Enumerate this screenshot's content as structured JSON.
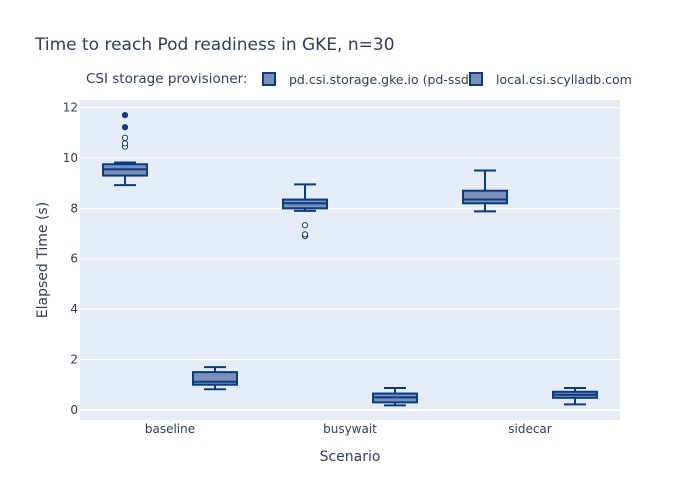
{
  "chart_data": {
    "type": "box",
    "title": "Time to reach Pod readiness in GKE, n=30",
    "xlabel": "Scenario",
    "ylabel": "Elapsed Time (s)",
    "ylim": [
      -0.4,
      12.3
    ],
    "yticks": [
      0,
      2,
      4,
      6,
      8,
      10,
      12
    ],
    "categories": [
      "baseline",
      "busywait",
      "sidecar"
    ],
    "legend": {
      "title": "CSI storage provisioner:",
      "placement": "top-center",
      "orientation": "horizontal"
    },
    "grid": true,
    "colors": {
      "fill": "#7a90b8",
      "line": "#0b3b82",
      "plot_background": "#e5ecf6"
    },
    "series": [
      {
        "name": "pd.csi.storage.gke.io (pd-ssd)",
        "boxes": [
          {
            "category": "baseline",
            "q1": 9.3,
            "median": 9.55,
            "q3": 9.75,
            "lower_whisker": 8.92,
            "upper_whisker": 9.82,
            "outliers": [
              10.45,
              10.58,
              10.8,
              11.22,
              11.7
            ]
          },
          {
            "category": "busywait",
            "q1": 8.0,
            "median": 8.2,
            "q3": 8.35,
            "lower_whisker": 7.9,
            "upper_whisker": 8.95,
            "outliers": [
              6.9,
              6.97,
              7.33
            ]
          },
          {
            "category": "sidecar",
            "q1": 8.2,
            "median": 8.35,
            "q3": 8.7,
            "lower_whisker": 7.88,
            "upper_whisker": 9.5,
            "outliers": []
          }
        ]
      },
      {
        "name": "local.csi.scylladb.com",
        "boxes": [
          {
            "category": "baseline",
            "q1": 1.0,
            "median": 1.12,
            "q3": 1.5,
            "lower_whisker": 0.82,
            "upper_whisker": 1.7,
            "outliers": []
          },
          {
            "category": "busywait",
            "q1": 0.3,
            "median": 0.5,
            "q3": 0.65,
            "lower_whisker": 0.18,
            "upper_whisker": 0.87,
            "outliers": []
          },
          {
            "category": "sidecar",
            "q1": 0.48,
            "median": 0.6,
            "q3": 0.72,
            "lower_whisker": 0.22,
            "upper_whisker": 0.87,
            "outliers": []
          }
        ]
      }
    ]
  }
}
